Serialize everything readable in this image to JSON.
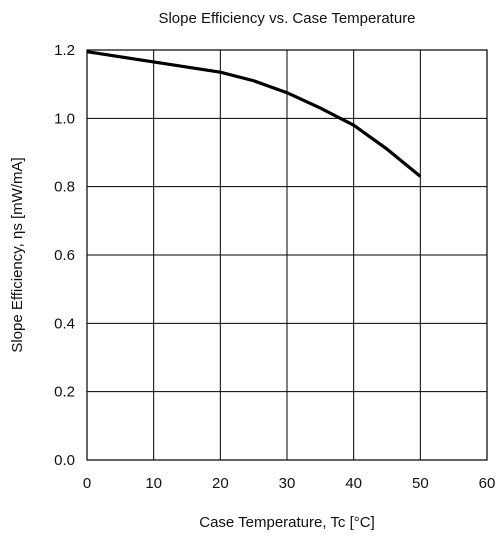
{
  "chart_data": {
    "type": "line",
    "title": "Slope Efficiency vs. Case Temperature",
    "xlabel": "Case Temperature, Tc [°C]",
    "ylabel": "Slope Efficiency, ηs [mW/mA]",
    "xlim": [
      0,
      60
    ],
    "ylim": [
      0,
      1.2
    ],
    "xticks": [
      0,
      10,
      20,
      30,
      40,
      50,
      60
    ],
    "yticks": [
      0,
      0.2,
      0.4,
      0.6,
      0.8,
      1.0,
      1.2
    ],
    "xtick_labels": [
      "0",
      "10",
      "20",
      "30",
      "40",
      "50",
      "60"
    ],
    "ytick_labels": [
      "0.0",
      "0.2",
      "0.4",
      "0.6",
      "0.8",
      "1.0",
      "1.2"
    ],
    "grid": true,
    "legend": "none",
    "series": [
      {
        "color": "#000000",
        "x": [
          0,
          5,
          10,
          15,
          20,
          25,
          30,
          35,
          40,
          45,
          50
        ],
        "y": [
          1.195,
          1.18,
          1.165,
          1.15,
          1.135,
          1.11,
          1.075,
          1.03,
          0.98,
          0.91,
          0.83
        ]
      }
    ]
  }
}
